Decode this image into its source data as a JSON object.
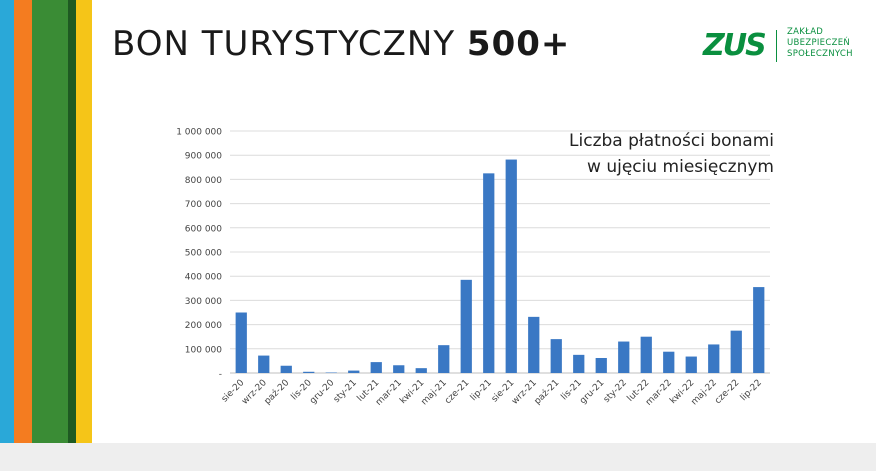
{
  "slide": {
    "title_regular": "BON TURYSTYCZNY ",
    "title_bold": "500+",
    "stripe_colors": [
      "#2aa8d8",
      "#f47c20",
      "#3a8c35",
      "#1e5a22",
      "#f5c518"
    ]
  },
  "logo": {
    "mark": "ZUS",
    "lines": [
      "ZAKŁAD",
      "UBEZPIECZEŃ",
      "SPOŁECZNYCH"
    ],
    "color": "#0a8f3f"
  },
  "chart_data": {
    "type": "bar",
    "title": "",
    "annotation": [
      "Liczba płatności bonami",
      "w ujęciu miesięcznym"
    ],
    "categories": [
      "sie-20",
      "wrz-20",
      "paź-20",
      "lis-20",
      "gru-20",
      "sty-21",
      "lut-21",
      "mar-21",
      "kwi-21",
      "maj-21",
      "cze-21",
      "lip-21",
      "sie-21",
      "wrz-21",
      "paź-21",
      "lis-21",
      "gru-21",
      "sty-22",
      "lut-22",
      "mar-22",
      "kwi-22",
      "maj-22",
      "cze-22",
      "lip-22"
    ],
    "values": [
      250000,
      72000,
      30000,
      5000,
      2000,
      10000,
      45000,
      32000,
      20000,
      115000,
      385000,
      825000,
      882000,
      232000,
      140000,
      75000,
      62000,
      130000,
      150000,
      88000,
      68000,
      118000,
      175000,
      355000
    ],
    "ylim": [
      0,
      1000000
    ],
    "yticks": [
      0,
      100000,
      200000,
      300000,
      400000,
      500000,
      600000,
      700000,
      800000,
      900000,
      1000000
    ],
    "ytick_labels": [
      "-",
      "100 000",
      "200 000",
      "300 000",
      "400 000",
      "500 000",
      "600 000",
      "700 000",
      "800 000",
      "900 000",
      "1 000 000"
    ],
    "xlabel": "",
    "ylabel": "",
    "grid": true,
    "legend": "none",
    "bar_color": "#3a78c4"
  }
}
